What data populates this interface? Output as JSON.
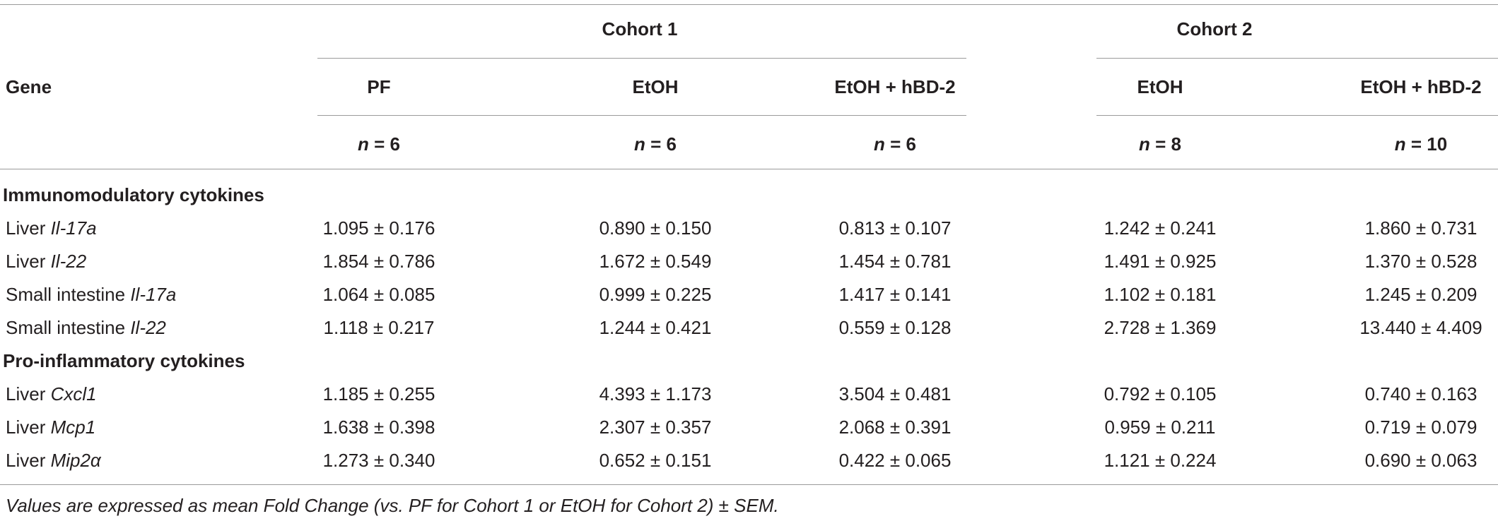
{
  "table": {
    "header": {
      "gene": "Gene",
      "groups": [
        "Cohort 1",
        "Cohort 2"
      ],
      "columns": [
        "PF",
        "EtOH",
        "EtOH + hBD-2",
        "EtOH",
        "EtOH + hBD-2"
      ],
      "n": [
        "n = 6",
        "n = 6",
        "n = 6",
        "n = 8",
        "n = 10"
      ]
    },
    "sections": [
      {
        "title": "Immunomodulatory cytokines",
        "rows": [
          {
            "label": [
              "Liver ",
              "Il-17a"
            ],
            "values": [
              "1.095 ± 0.176",
              "0.890 ± 0.150",
              "0.813 ± 0.107",
              "1.242 ± 0.241",
              "1.860 ± 0.731"
            ]
          },
          {
            "label": [
              "Liver ",
              "Il-22"
            ],
            "values": [
              "1.854 ± 0.786",
              "1.672 ± 0.549",
              "1.454 ± 0.781",
              "1.491 ± 0.925",
              "1.370 ± 0.528"
            ]
          },
          {
            "label": [
              "Small intestine ",
              "Il-17a"
            ],
            "values": [
              "1.064 ± 0.085",
              "0.999 ± 0.225",
              "1.417 ± 0.141",
              "1.102 ± 0.181",
              "1.245 ± 0.209"
            ]
          },
          {
            "label": [
              "Small intestine ",
              "Il-22"
            ],
            "values": [
              "1.118 ± 0.217",
              "1.244 ± 0.421",
              "0.559 ± 0.128",
              "2.728 ± 1.369",
              "13.440 ± 4.409"
            ]
          }
        ]
      },
      {
        "title": "Pro-inflammatory cytokines",
        "rows": [
          {
            "label": [
              "Liver ",
              "Cxcl1"
            ],
            "values": [
              "1.185 ± 0.255",
              "4.393 ± 1.173",
              "3.504 ± 0.481",
              "0.792 ± 0.105",
              "0.740 ± 0.163"
            ]
          },
          {
            "label": [
              "Liver ",
              "Mcp1"
            ],
            "values": [
              "1.638 ± 0.398",
              "2.307 ± 0.357",
              "2.068 ± 0.391",
              "0.959 ± 0.211",
              "0.719 ± 0.079"
            ]
          },
          {
            "label": [
              "Liver ",
              "Mip2α"
            ],
            "values": [
              "1.273 ± 0.340",
              "0.652 ± 0.151",
              "0.422 ± 0.065",
              "1.121 ± 0.224",
              "0.690 ± 0.063"
            ]
          }
        ]
      }
    ],
    "footnote": "Values are expressed as mean Fold Change (vs. PF for Cohort 1 or EtOH for Cohort 2) ± SEM."
  }
}
